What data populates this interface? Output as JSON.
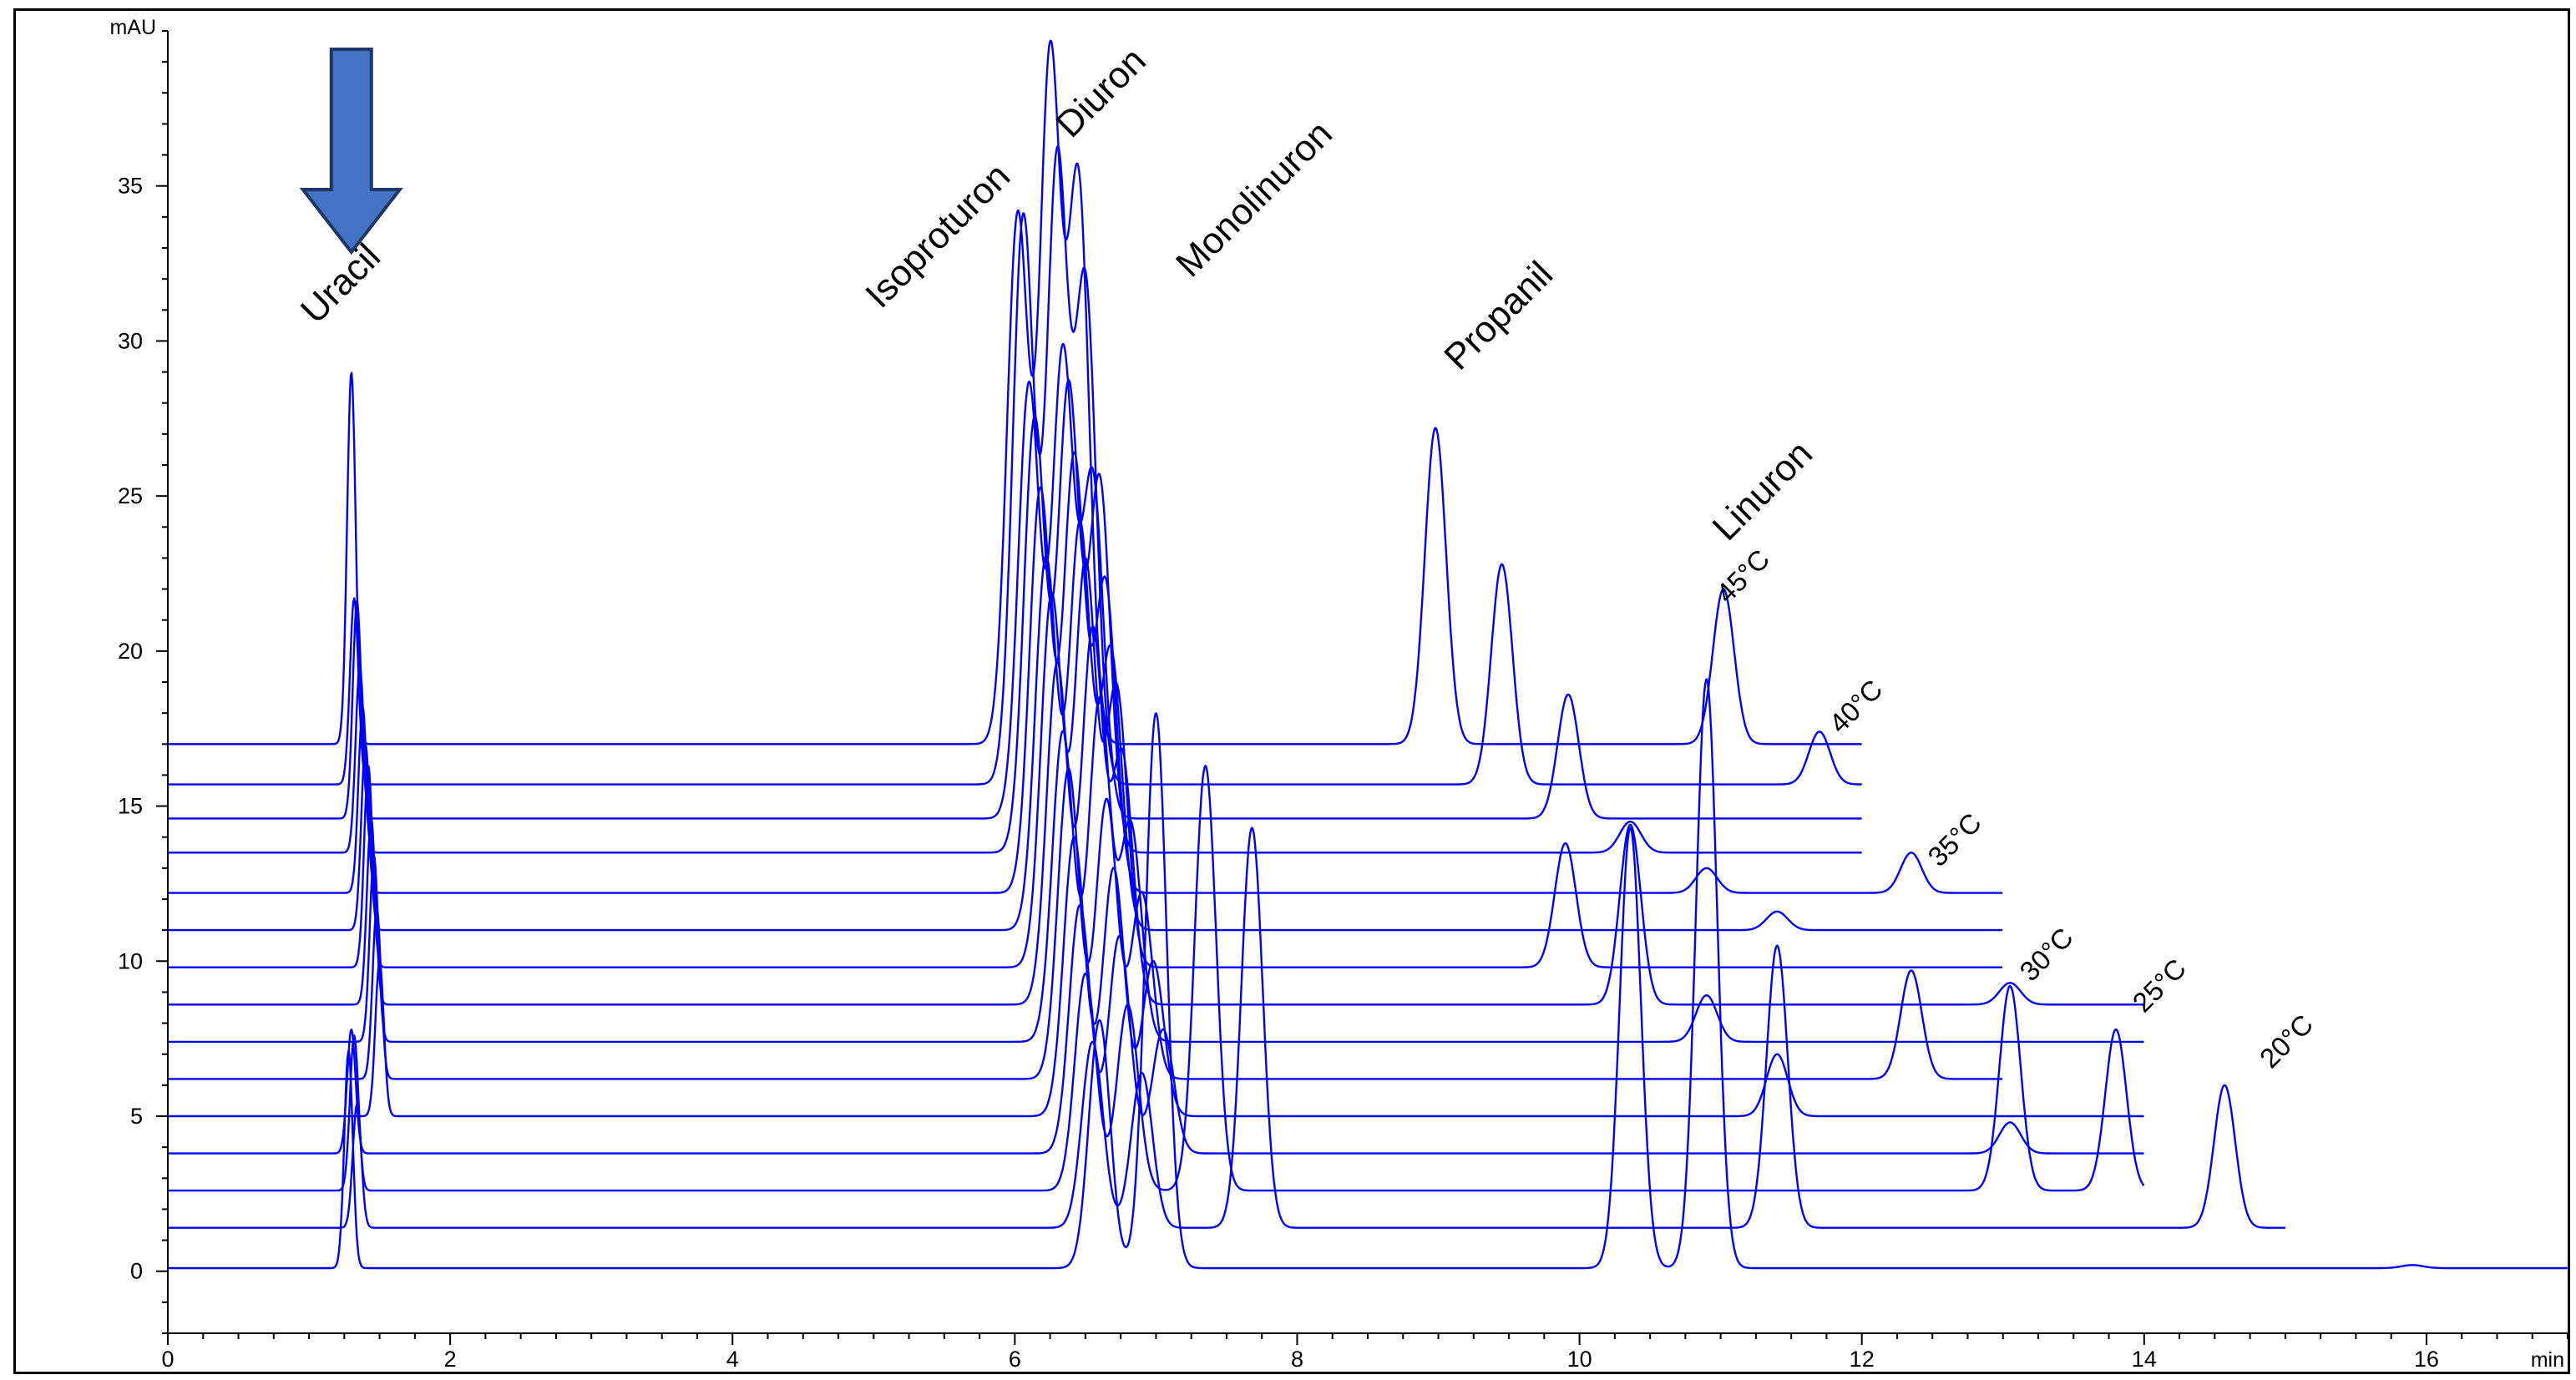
{
  "chart_data": {
    "type": "line",
    "title": "",
    "xlabel": "",
    "ylabel": "",
    "x_unit": "min",
    "y_unit": "mAU",
    "xlim": [
      0,
      17
    ],
    "ylim": [
      -2,
      40
    ],
    "x_ticks": [
      0,
      2,
      4,
      6,
      8,
      10,
      12,
      14,
      16
    ],
    "y_ticks": [
      0,
      5,
      10,
      15,
      20,
      25,
      30,
      35
    ],
    "grid": false,
    "legend": "none",
    "line_color": "#0000ff",
    "arrow_color": "#4472c4",
    "arrow_x": 1.3,
    "compound_labels": [
      {
        "text": "Uracil",
        "x": 1.05,
        "y": 30.5
      },
      {
        "text": "Isoproturon",
        "x": 5.05,
        "y": 31.0
      },
      {
        "text": "Diuron",
        "x": 6.4,
        "y": 36.5
      },
      {
        "text": "Monolinuron",
        "x": 7.25,
        "y": 32.0
      },
      {
        "text": "Propanil",
        "x": 9.15,
        "y": 29.0
      },
      {
        "text": "Linuron",
        "x": 11.05,
        "y": 23.5
      }
    ],
    "temperature_labels": [
      {
        "text": "45°C",
        "x": 11.05,
        "y": 21.5
      },
      {
        "text": "40°C",
        "x": 11.85,
        "y": 17.3
      },
      {
        "text": "35°C",
        "x": 12.55,
        "y": 13.0
      },
      {
        "text": "30°C",
        "x": 13.2,
        "y": 9.3
      },
      {
        "text": "25°C",
        "x": 14.0,
        "y": 8.3
      },
      {
        "text": "20°C",
        "x": 14.9,
        "y": 6.5
      }
    ],
    "series": [
      {
        "baseline": 17.0,
        "x_end": 12.0,
        "uracil": {
          "t": 1.3,
          "h": 12.0
        },
        "peaks": [
          {
            "t": 6.02,
            "h": 17.0
          },
          {
            "t": 6.25,
            "h": 22.0
          },
          {
            "t": 6.45,
            "h": 18.0
          },
          {
            "t": 8.98,
            "h": 10.2
          },
          {
            "t": 11.02,
            "h": 5.0
          }
        ]
      },
      {
        "baseline": 15.7,
        "x_end": 12.0,
        "uracil": {
          "t": 1.32,
          "h": 6.0
        },
        "peaks": [
          {
            "t": 6.06,
            "h": 18.3
          },
          {
            "t": 6.3,
            "h": 20.0
          },
          {
            "t": 6.5,
            "h": 16.0
          },
          {
            "t": 9.45,
            "h": 7.1
          },
          {
            "t": 11.7,
            "h": 1.7
          }
        ]
      },
      {
        "baseline": 14.6,
        "x_end": 12.0,
        "uracil": {
          "t": 1.34,
          "h": 7.0
        },
        "peaks": [
          {
            "t": 6.1,
            "h": 14.0
          },
          {
            "t": 6.34,
            "h": 15.0
          },
          {
            "t": 6.55,
            "h": 11.0
          },
          {
            "t": 9.92,
            "h": 4.0
          }
        ]
      },
      {
        "baseline": 13.5,
        "x_end": 12.0,
        "uracil": {
          "t": 1.36,
          "h": 6.0
        },
        "peaks": [
          {
            "t": 6.14,
            "h": 14.0
          },
          {
            "t": 6.38,
            "h": 15.0
          },
          {
            "t": 6.6,
            "h": 12.0
          },
          {
            "t": 10.36,
            "h": 1.0
          }
        ]
      },
      {
        "baseline": 12.2,
        "x_end": 13.0,
        "uracil": {
          "t": 1.38,
          "h": 6.0
        },
        "peaks": [
          {
            "t": 6.18,
            "h": 13.0
          },
          {
            "t": 6.42,
            "h": 14.0
          },
          {
            "t": 6.64,
            "h": 10.0
          },
          {
            "t": 10.9,
            "h": 0.8
          },
          {
            "t": 12.35,
            "h": 1.3
          }
        ]
      },
      {
        "baseline": 11.0,
        "x_end": 13.0,
        "uracil": {
          "t": 1.4,
          "h": 6.0
        },
        "peaks": [
          {
            "t": 6.22,
            "h": 12.0
          },
          {
            "t": 6.46,
            "h": 13.0
          },
          {
            "t": 6.68,
            "h": 9.0
          },
          {
            "t": 11.4,
            "h": 0.6
          }
        ]
      },
      {
        "baseline": 9.8,
        "x_end": 13.0,
        "uracil": {
          "t": 1.42,
          "h": 6.5
        },
        "peaks": [
          {
            "t": 6.26,
            "h": 12.0
          },
          {
            "t": 6.5,
            "h": 13.0
          },
          {
            "t": 6.72,
            "h": 9.0
          },
          {
            "t": 9.9,
            "h": 4.0
          }
        ]
      },
      {
        "baseline": 8.6,
        "x_end": 14.0,
        "uracil": {
          "t": 1.44,
          "h": 6.0
        },
        "peaks": [
          {
            "t": 6.3,
            "h": 11.0
          },
          {
            "t": 6.55,
            "h": 12.0
          },
          {
            "t": 6.76,
            "h": 8.0
          },
          {
            "t": 10.36,
            "h": 5.8
          },
          {
            "t": 13.05,
            "h": 0.7
          }
        ]
      },
      {
        "baseline": 7.4,
        "x_end": 14.0,
        "uracil": {
          "t": 1.46,
          "h": 6.0
        },
        "peaks": [
          {
            "t": 6.34,
            "h": 10.0
          },
          {
            "t": 6.6,
            "h": 11.0
          },
          {
            "t": 6.82,
            "h": 7.0
          },
          {
            "t": 10.9,
            "h": 1.5
          }
        ]
      },
      {
        "baseline": 6.2,
        "x_end": 13.0,
        "uracil": {
          "t": 1.48,
          "h": 5.5
        },
        "peaks": [
          {
            "t": 6.38,
            "h": 10.0
          },
          {
            "t": 6.65,
            "h": 9.0
          },
          {
            "t": 6.9,
            "h": 6.0
          },
          {
            "t": 12.35,
            "h": 3.5
          }
        ]
      },
      {
        "baseline": 5.0,
        "x_end": 14.0,
        "uracil": {
          "t": 1.5,
          "h": 5.0
        },
        "peaks": [
          {
            "t": 6.42,
            "h": 9.0
          },
          {
            "t": 6.7,
            "h": 8.0
          },
          {
            "t": 6.98,
            "h": 5.0
          },
          {
            "t": 11.4,
            "h": 2.0
          }
        ]
      },
      {
        "baseline": 3.8,
        "x_end": 14.0,
        "uracil": {
          "t": 1.3,
          "h": 4.0
        },
        "peaks": [
          {
            "t": 6.46,
            "h": 8.0
          },
          {
            "t": 6.74,
            "h": 7.0
          },
          {
            "t": 7.05,
            "h": 4.0
          },
          {
            "t": 13.05,
            "h": 1.0
          }
        ]
      },
      {
        "baseline": 2.6,
        "x_end": 14.0,
        "uracil": {
          "t": 1.32,
          "h": 5.0
        },
        "peaks": [
          {
            "t": 6.5,
            "h": 7.0
          },
          {
            "t": 6.8,
            "h": 6.0
          },
          {
            "t": 7.35,
            "h": 13.7
          },
          {
            "t": 13.05,
            "h": 6.6
          },
          {
            "t": 13.8,
            "h": 5.2
          }
        ]
      },
      {
        "baseline": 1.4,
        "x_end": 15.0,
        "uracil": {
          "t": 1.34,
          "h": 4.0
        },
        "peaks": [
          {
            "t": 6.55,
            "h": 6.0
          },
          {
            "t": 6.9,
            "h": 5.0
          },
          {
            "t": 7.68,
            "h": 12.9
          },
          {
            "t": 11.4,
            "h": 9.1
          },
          {
            "t": 14.57,
            "h": 4.6
          }
        ]
      },
      {
        "baseline": 0.1,
        "x_end": 17.0,
        "uracil": {
          "t": 1.28,
          "h": 7.0
        },
        "peaks": [
          {
            "t": 6.6,
            "h": 8.0
          },
          {
            "t": 7.0,
            "h": 17.9
          },
          {
            "t": 10.36,
            "h": 14.2
          },
          {
            "t": 10.9,
            "h": 19.0
          },
          {
            "t": 15.9,
            "h": 0.1
          }
        ]
      }
    ]
  }
}
